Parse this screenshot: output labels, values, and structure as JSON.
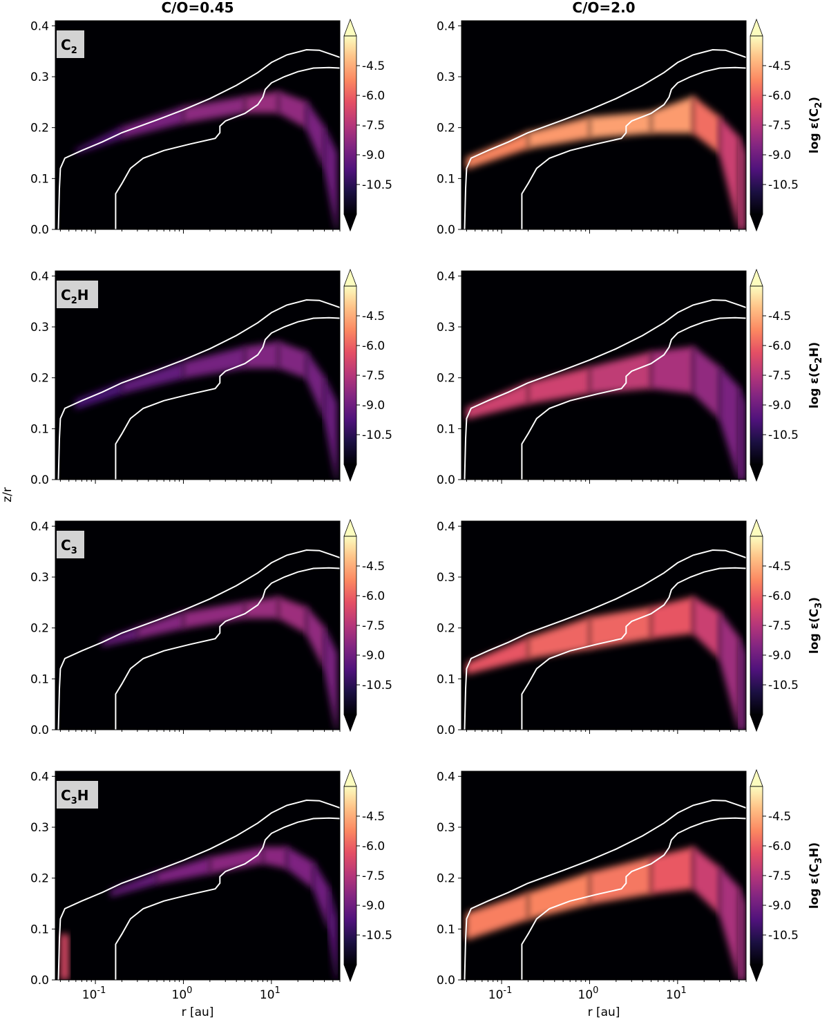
{
  "figure": {
    "column_titles": [
      "C/O=0.45",
      "C/O=2.0"
    ],
    "shared_ylabel": "z/r",
    "shared_xlabel": "r [au]"
  },
  "chart_data": {
    "type": "heatmap",
    "layout": "4 rows x 2 columns",
    "xlabel": "r [au]",
    "ylabel": "z/r",
    "xscale": "log",
    "xlim": [
      0.035,
      60
    ],
    "ylim": [
      0.0,
      0.41
    ],
    "xticks": [
      {
        "label": "10",
        "exponent": "-1",
        "value": 0.1
      },
      {
        "label": "10",
        "exponent": "0",
        "value": 1
      },
      {
        "label": "10",
        "exponent": "1",
        "value": 10
      }
    ],
    "yticks": [
      "0.0",
      "0.1",
      "0.2",
      "0.3",
      "0.4"
    ],
    "colorbar": {
      "ticks": [
        "-4.5",
        "-6.0",
        "-7.5",
        "-9.0",
        "-10.5"
      ],
      "range": [
        -12,
        -3
      ],
      "colormap": "magma",
      "extend": "both"
    },
    "rows": [
      {
        "species": "C",
        "sub": "2",
        "tail": "",
        "cbar_label": "log ε(C",
        "cbar_sub": "2",
        "cbar_tail": ")"
      },
      {
        "species": "C",
        "sub": "2",
        "tail": "H",
        "cbar_label": "log ε(C",
        "cbar_sub": "2",
        "cbar_tail": "H)"
      },
      {
        "species": "C",
        "sub": "3",
        "tail": "",
        "cbar_label": "log ε(C",
        "cbar_sub": "3",
        "cbar_tail": ")"
      },
      {
        "species": "C",
        "sub": "3",
        "tail": "H",
        "cbar_label": "log ε(C",
        "cbar_sub": "3",
        "cbar_tail": "H)"
      }
    ],
    "contours": [
      {
        "name": "outer",
        "points": [
          [
            0.038,
            0
          ],
          [
            0.039,
            0.08
          ],
          [
            0.04,
            0.12
          ],
          [
            0.045,
            0.14
          ],
          [
            0.07,
            0.155
          ],
          [
            0.12,
            0.172
          ],
          [
            0.2,
            0.19
          ],
          [
            0.5,
            0.215
          ],
          [
            1,
            0.235
          ],
          [
            2,
            0.257
          ],
          [
            4,
            0.283
          ],
          [
            7,
            0.308
          ],
          [
            10,
            0.328
          ],
          [
            15,
            0.343
          ],
          [
            25,
            0.353
          ],
          [
            35,
            0.352
          ],
          [
            50,
            0.343
          ],
          [
            60,
            0.338
          ]
        ]
      },
      {
        "name": "inner",
        "points": [
          [
            0.17,
            0
          ],
          [
            0.17,
            0.07
          ],
          [
            0.2,
            0.09
          ],
          [
            0.25,
            0.12
          ],
          [
            0.35,
            0.14
          ],
          [
            0.6,
            0.155
          ],
          [
            1.2,
            0.168
          ],
          [
            2.3,
            0.179
          ],
          [
            2.6,
            0.19
          ],
          [
            2.6,
            0.203
          ],
          [
            3,
            0.213
          ],
          [
            5,
            0.228
          ],
          [
            7,
            0.245
          ],
          [
            8,
            0.26
          ],
          [
            8.5,
            0.275
          ],
          [
            10,
            0.288
          ],
          [
            14,
            0.3
          ],
          [
            20,
            0.31
          ],
          [
            30,
            0.317
          ],
          [
            45,
            0.318
          ],
          [
            60,
            0.317
          ]
        ]
      }
    ],
    "series": [
      {
        "row": 0,
        "col": 0,
        "band": [
          [
            0.06,
            0.15,
            0.155,
            -10
          ],
          [
            0.2,
            0.18,
            0.2,
            -9
          ],
          [
            1,
            0.21,
            0.24,
            -8.5
          ],
          [
            5,
            0.23,
            0.26,
            -8.2
          ],
          [
            12,
            0.23,
            0.27,
            -8
          ],
          [
            25,
            0.2,
            0.25,
            -8.5
          ],
          [
            40,
            0.12,
            0.2,
            -9
          ],
          [
            55,
            0.0,
            0.15,
            -9
          ]
        ]
      },
      {
        "row": 0,
        "col": 1,
        "band": [
          [
            0.04,
            0.12,
            0.14,
            -5.5
          ],
          [
            0.2,
            0.16,
            0.19,
            -5
          ],
          [
            1,
            0.18,
            0.22,
            -4.8
          ],
          [
            5,
            0.19,
            0.23,
            -4.7
          ],
          [
            15,
            0.19,
            0.26,
            -5
          ],
          [
            30,
            0.15,
            0.22,
            -6.5
          ],
          [
            50,
            0.0,
            0.18,
            -7.5
          ],
          [
            58,
            0.0,
            0.15,
            -7
          ]
        ]
      },
      {
        "row": 1,
        "col": 0,
        "band": [
          [
            0.06,
            0.14,
            0.155,
            -10
          ],
          [
            0.2,
            0.17,
            0.19,
            -9.5
          ],
          [
            1,
            0.2,
            0.23,
            -9
          ],
          [
            5,
            0.22,
            0.26,
            -8.7
          ],
          [
            12,
            0.22,
            0.27,
            -8.5
          ],
          [
            25,
            0.2,
            0.25,
            -8.7
          ],
          [
            40,
            0.12,
            0.2,
            -9
          ],
          [
            55,
            0.0,
            0.15,
            -9.2
          ]
        ]
      },
      {
        "row": 1,
        "col": 1,
        "band": [
          [
            0.04,
            0.12,
            0.14,
            -7
          ],
          [
            0.2,
            0.15,
            0.19,
            -6.8
          ],
          [
            1,
            0.17,
            0.22,
            -7
          ],
          [
            5,
            0.18,
            0.25,
            -7.5
          ],
          [
            15,
            0.17,
            0.26,
            -8
          ],
          [
            30,
            0.12,
            0.22,
            -8.5
          ],
          [
            50,
            0.0,
            0.18,
            -9
          ],
          [
            58,
            0.0,
            0.15,
            -9
          ]
        ]
      },
      {
        "row": 2,
        "col": 0,
        "band": [
          [
            0.12,
            0.165,
            0.175,
            -9.5
          ],
          [
            0.3,
            0.18,
            0.2,
            -8.7
          ],
          [
            1,
            0.2,
            0.23,
            -8.3
          ],
          [
            5,
            0.22,
            0.25,
            -8.2
          ],
          [
            12,
            0.22,
            0.26,
            -8
          ],
          [
            25,
            0.19,
            0.24,
            -8
          ],
          [
            40,
            0.12,
            0.2,
            -8.5
          ],
          [
            55,
            0.0,
            0.15,
            -9
          ]
        ]
      },
      {
        "row": 2,
        "col": 1,
        "band": [
          [
            0.04,
            0.11,
            0.13,
            -6.5
          ],
          [
            0.2,
            0.14,
            0.18,
            -6
          ],
          [
            1,
            0.16,
            0.22,
            -5.8
          ],
          [
            5,
            0.18,
            0.24,
            -6
          ],
          [
            15,
            0.19,
            0.26,
            -6.5
          ],
          [
            30,
            0.14,
            0.23,
            -7.5
          ],
          [
            50,
            0.0,
            0.18,
            -8.5
          ],
          [
            58,
            0.0,
            0.15,
            -8.5
          ]
        ]
      },
      {
        "row": 3,
        "col": 0,
        "band": [
          [
            0.15,
            0.165,
            0.175,
            -9.5
          ],
          [
            0.5,
            0.19,
            0.21,
            -8.8
          ],
          [
            2,
            0.21,
            0.24,
            -8.5
          ],
          [
            8,
            0.23,
            0.26,
            -8.3
          ],
          [
            15,
            0.22,
            0.26,
            -8.5
          ],
          [
            30,
            0.18,
            0.23,
            -8.8
          ],
          [
            45,
            0.1,
            0.18,
            -9.2
          ],
          [
            55,
            0.0,
            0.12,
            -9.5
          ]
        ]
      },
      {
        "row": 3,
        "col": 1,
        "band": [
          [
            0.04,
            0.08,
            0.13,
            -5.5
          ],
          [
            0.2,
            0.12,
            0.17,
            -5.3
          ],
          [
            1,
            0.15,
            0.21,
            -5.3
          ],
          [
            5,
            0.17,
            0.24,
            -5.8
          ],
          [
            15,
            0.18,
            0.26,
            -6.5
          ],
          [
            30,
            0.13,
            0.22,
            -7.5
          ],
          [
            50,
            0.0,
            0.18,
            -8
          ],
          [
            58,
            0.0,
            0.15,
            -8
          ]
        ]
      }
    ],
    "extra_blobs": [
      {
        "row": 3,
        "col": 0,
        "r_min": 0.04,
        "r_max": 0.05,
        "z_min": 0.0,
        "z_max": 0.09,
        "value": -6.5
      }
    ]
  }
}
